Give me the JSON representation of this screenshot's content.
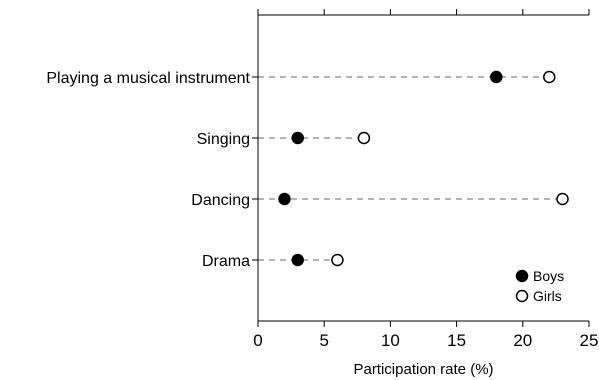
{
  "chart_data": {
    "type": "scatter",
    "categories": [
      "Playing a musical instrument",
      "Singing",
      "Dancing",
      "Drama"
    ],
    "series": [
      {
        "name": "Boys",
        "values": [
          18,
          3,
          2,
          3
        ],
        "marker": "filled-circle",
        "color": "#000000"
      },
      {
        "name": "Girls",
        "values": [
          22,
          8,
          23,
          6
        ],
        "marker": "open-circle",
        "color": "#000000"
      }
    ],
    "xlabel": "Participation rate (%)",
    "xlim": [
      0,
      25
    ],
    "xticks": [
      0,
      5,
      10,
      15,
      20,
      25
    ],
    "connector_style": "dashed",
    "connector_color": "#888888",
    "legend_position": "bottom-right",
    "grid": false
  }
}
